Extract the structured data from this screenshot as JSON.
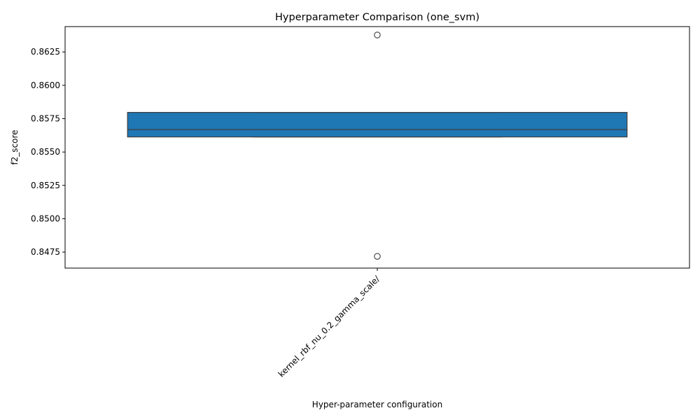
{
  "chart_data": {
    "type": "box",
    "title": "Hyperparameter Comparison (one_svm)",
    "xlabel": "Hyper-parameter configuration",
    "ylabel": "f2_score",
    "ylim": [
      0.8463,
      0.8644
    ],
    "yticks": [
      0.8475,
      0.85,
      0.8525,
      0.855,
      0.8575,
      0.86,
      0.8625
    ],
    "ytick_labels": [
      "0.8475",
      "0.8500",
      "0.8525",
      "0.8550",
      "0.8575",
      "0.8600",
      "0.8625"
    ],
    "categories": [
      "kernel_rbf_nu_0.2_gamma_scale/"
    ],
    "boxes": [
      {
        "category": "kernel_rbf_nu_0.2_gamma_scale/",
        "q1": 0.85613,
        "median": 0.85668,
        "q3": 0.85797,
        "whisker_low": 0.85613,
        "whisker_high": 0.85797,
        "outliers": [
          0.86377,
          0.84718
        ]
      }
    ],
    "color": "#1f77b4",
    "line_color": "#3d3d3d",
    "grid": false,
    "legend": false
  }
}
